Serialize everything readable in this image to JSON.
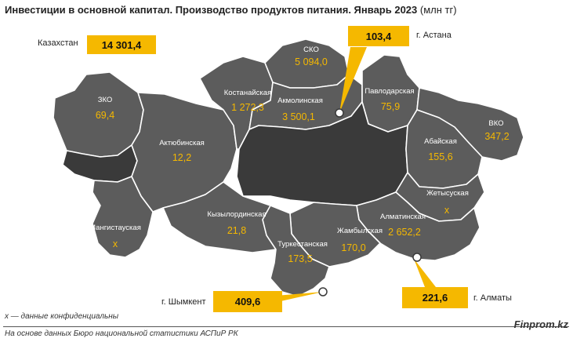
{
  "title": "Инвестиции в основной капитал. Производство продуктов питания. Январь 2023",
  "unit": "(млн тг)",
  "kazakhstan": {
    "label": "Казахстан",
    "value": "14 301,4"
  },
  "cities": {
    "astana": {
      "label": "г. Астана",
      "value": "103,4"
    },
    "almaty": {
      "label": "г. Алматы",
      "value": "221,6"
    },
    "shymkent": {
      "label": "г. Шымкент",
      "value": "409,6"
    }
  },
  "regions": [
    {
      "name": "ЗКО",
      "value": "69,4"
    },
    {
      "name": "Актюбинская",
      "value": "12,2"
    },
    {
      "name": "Мангистауская",
      "value": "x"
    },
    {
      "name": "Кызылординская",
      "value": "21,8"
    },
    {
      "name": "Костанайская",
      "value": "1 272,3"
    },
    {
      "name": "СКО",
      "value": "5 094,0"
    },
    {
      "name": "Акмолинская",
      "value": "3 500,1"
    },
    {
      "name": "Павлодарская",
      "value": "75,9"
    },
    {
      "name": "ВКО",
      "value": "347,2"
    },
    {
      "name": "Абайская",
      "value": "155,6"
    },
    {
      "name": "Жетысуская",
      "value": "x"
    },
    {
      "name": "Алматинская",
      "value": "2 652,2"
    },
    {
      "name": "Жамбылская",
      "value": "170,0"
    },
    {
      "name": "Туркестанская",
      "value": "173,5"
    }
  ],
  "footnote": "х — данные конфиденциальны",
  "source": "На основе данных Бюро национальной статистики АСПиР РК",
  "brand": "Finprom.kz",
  "colors": {
    "region": "#5c5c5c",
    "region_dark": "#3a3a3a",
    "accent": "#f5b800"
  }
}
